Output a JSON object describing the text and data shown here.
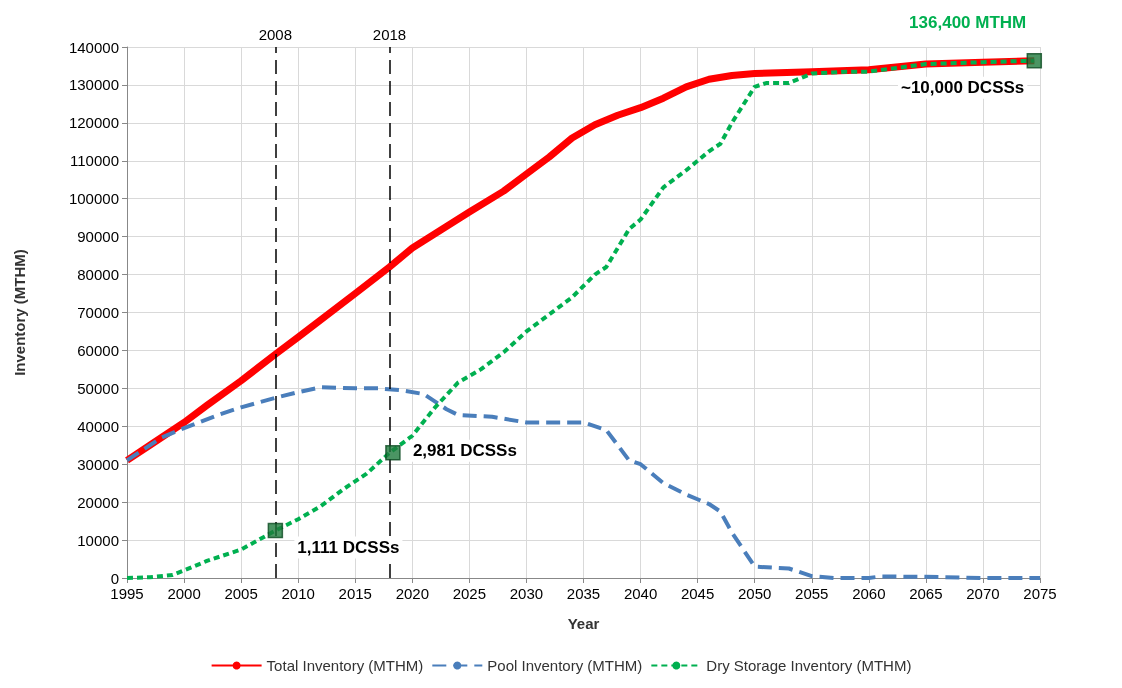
{
  "chart_data": {
    "type": "line",
    "xlabel": "Year",
    "ylabel": "Inventory (MTHM)",
    "xlim": [
      1995,
      2075
    ],
    "xticks": [
      1995,
      2000,
      2005,
      2010,
      2015,
      2020,
      2025,
      2030,
      2035,
      2040,
      2045,
      2050,
      2055,
      2060,
      2065,
      2070,
      2075
    ],
    "ylim": [
      0,
      140000
    ],
    "yticks": [
      0,
      10000,
      20000,
      30000,
      40000,
      50000,
      60000,
      70000,
      80000,
      90000,
      100000,
      110000,
      120000,
      130000,
      140000
    ],
    "grid": true,
    "legend": "bottom",
    "marker": "none",
    "series": [
      {
        "name": "Total Inventory (MTHM)",
        "color": "#ff0000",
        "line_style": "solid",
        "x": [
          1995,
          1997,
          2000,
          2002,
          2005,
          2008,
          2010,
          2015,
          2018,
          2020,
          2025,
          2028,
          2030,
          2032,
          2034,
          2036,
          2038,
          2040,
          2042,
          2044,
          2046,
          2048,
          2050,
          2055,
          2060,
          2065,
          2070,
          2074.5
        ],
        "values": [
          31000,
          35000,
          41000,
          45500,
          52000,
          59000,
          63500,
          75000,
          82000,
          87000,
          96500,
          102000,
          106500,
          111000,
          116000,
          119500,
          122000,
          124000,
          126500,
          129500,
          131500,
          132500,
          133000,
          133500,
          134000,
          135500,
          136000,
          136400
        ]
      },
      {
        "name": "Pool Inventory (MTHM)",
        "color": "#4a7ebb",
        "line_style": "dashed",
        "x": [
          1995,
          1998,
          2000,
          2003,
          2005,
          2008,
          2010,
          2012,
          2015,
          2017,
          2019,
          2021,
          2023,
          2024,
          2027,
          2030,
          2035,
          2037,
          2039,
          2040,
          2042,
          2044,
          2046,
          2047,
          2048,
          2050,
          2053,
          2055,
          2057,
          2060,
          2061,
          2065,
          2070,
          2075
        ],
        "values": [
          31000,
          37000,
          39500,
          43000,
          45000,
          47500,
          49000,
          50300,
          50000,
          50000,
          49500,
          48500,
          44500,
          43000,
          42500,
          41000,
          41000,
          39000,
          31000,
          30000,
          25000,
          22000,
          19500,
          17500,
          12000,
          3000,
          2500,
          500,
          0,
          0,
          400,
          300,
          0,
          0
        ]
      },
      {
        "name": "Dry Storage Inventory (MTHM)",
        "color": "#00b050",
        "line_style": "dotted",
        "x": [
          1995,
          1997,
          1999,
          2000,
          2002,
          2005,
          2008,
          2010,
          2012,
          2014,
          2016,
          2018,
          2020,
          2022,
          2024,
          2026,
          2028,
          2030,
          2032,
          2034,
          2036,
          2037,
          2039,
          2040,
          2042,
          2044,
          2046,
          2047,
          2048,
          2050,
          2051,
          2053,
          2055,
          2058,
          2060,
          2065,
          2070,
          2074.5
        ],
        "values": [
          0,
          200,
          800,
          2000,
          4500,
          7500,
          12500,
          15500,
          19000,
          23500,
          27500,
          33000,
          37500,
          45000,
          51500,
          55000,
          59500,
          65000,
          69500,
          74000,
          80000,
          82000,
          92000,
          94500,
          103000,
          107500,
          112500,
          114500,
          120000,
          129500,
          130500,
          130500,
          133000,
          133500,
          133500,
          135500,
          136000,
          136400
        ]
      },
      {
        "type": "scatter",
        "marker": "square",
        "color": "#1e7b3c",
        "x": [
          2008,
          2018.3,
          2074.5
        ],
        "values": [
          12500,
          33000,
          136400
        ]
      }
    ],
    "ref_lines": [
      {
        "axis": "x",
        "value": 2008,
        "label": "2008",
        "color": "#000000",
        "line_style": "dashed"
      },
      {
        "axis": "x",
        "value": 2018,
        "label": "2018",
        "color": "#000000",
        "line_style": "dashed"
      }
    ],
    "annotations": [
      {
        "text": "1,111 DCSSs",
        "x": 2008,
        "y": 12500
      },
      {
        "text": "2,981 DCSSs",
        "x": 2018.3,
        "y": 33000
      },
      {
        "text": "~10,000 DCSSs",
        "x": 2074.5,
        "y": 136400
      },
      {
        "text": "136,400 MTHM",
        "x": 2074.5,
        "y": 136400
      }
    ]
  }
}
